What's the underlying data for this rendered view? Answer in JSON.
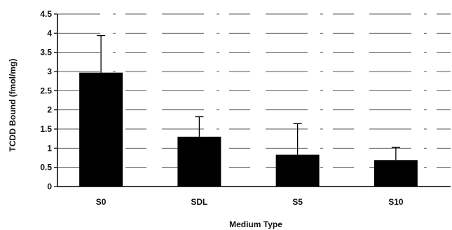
{
  "chart_data": {
    "type": "bar",
    "title": "",
    "xlabel": "Medium Type",
    "ylabel": "TCDD Bound (fmol/mg)",
    "categories": [
      "S0",
      "SDL",
      "S5",
      "S10"
    ],
    "values": [
      2.97,
      1.3,
      0.83,
      0.69
    ],
    "error_upper": [
      0.97,
      0.52,
      0.81,
      0.33
    ],
    "ylim": [
      0,
      4.5
    ],
    "yticks": [
      "0",
      "0.5",
      "1",
      "1.5",
      "2",
      "2.5",
      "3",
      "3.5",
      "4",
      "4.5"
    ],
    "grid": true,
    "legend": "none",
    "colors": {
      "bar": "#000000",
      "axis": "#000000",
      "grid": "#555555"
    }
  }
}
